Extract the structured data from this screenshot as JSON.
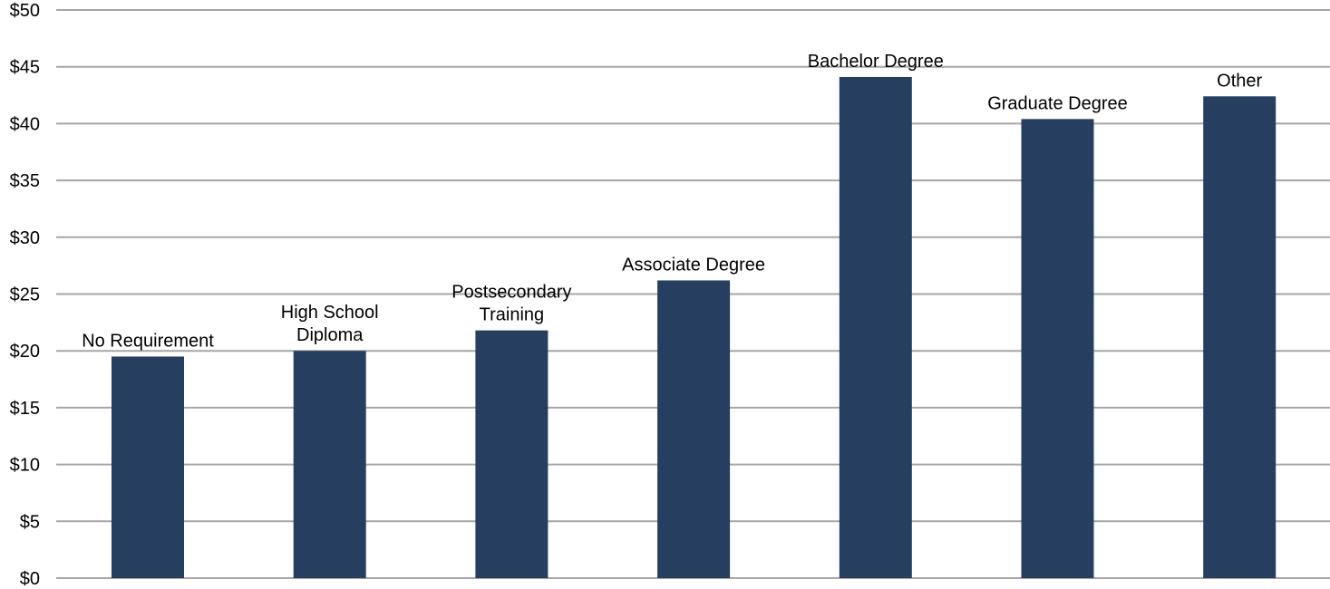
{
  "chart_data": {
    "type": "bar",
    "title": "",
    "xlabel": "",
    "ylabel": "",
    "categories": [
      [
        "No Requirement"
      ],
      [
        "High School",
        "Diploma"
      ],
      [
        "Postsecondary",
        "Training"
      ],
      [
        "Associate Degree"
      ],
      [
        "Bachelor Degree"
      ],
      [
        "Graduate Degree"
      ],
      [
        "Other"
      ]
    ],
    "values": [
      19.5,
      20.0,
      21.8,
      26.2,
      44.1,
      40.4,
      42.4
    ],
    "ylim": [
      0,
      50
    ],
    "ytick_step": 5,
    "ytick_labels": [
      "$0",
      "$5",
      "$10",
      "$15",
      "$20",
      "$25",
      "$30",
      "$35",
      "$40",
      "$45",
      "$50"
    ],
    "bar_color": "#263f61",
    "grid": true,
    "grid_color": "#a6a6a6",
    "legend": "none",
    "label_position": "above-bar"
  }
}
